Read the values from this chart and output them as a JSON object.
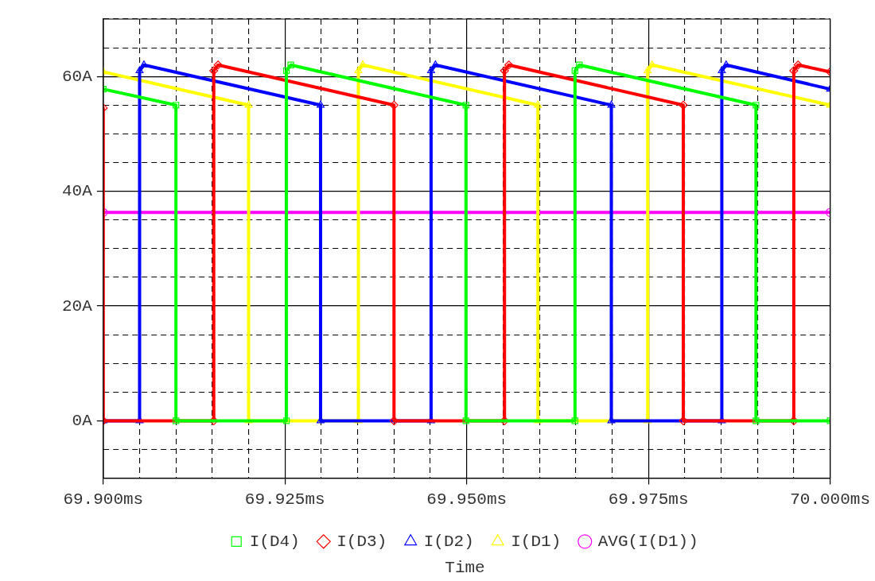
{
  "chart_data": {
    "type": "line",
    "xlabel": "Time",
    "xlim": [
      69.9,
      70.0
    ],
    "ylim": [
      -10,
      70
    ],
    "xticks": [
      {
        "value": 69.9,
        "label": "69.900ms"
      },
      {
        "value": 69.905,
        "label": null
      },
      {
        "value": 69.91,
        "label": null
      },
      {
        "value": 69.915,
        "label": null
      },
      {
        "value": 69.92,
        "label": null
      },
      {
        "value": 69.925,
        "label": "69.925ms"
      },
      {
        "value": 69.93,
        "label": null
      },
      {
        "value": 69.935,
        "label": null
      },
      {
        "value": 69.94,
        "label": null
      },
      {
        "value": 69.945,
        "label": null
      },
      {
        "value": 69.95,
        "label": "69.950ms"
      },
      {
        "value": 69.955,
        "label": null
      },
      {
        "value": 69.96,
        "label": null
      },
      {
        "value": 69.965,
        "label": null
      },
      {
        "value": 69.97,
        "label": null
      },
      {
        "value": 69.975,
        "label": "69.975ms"
      },
      {
        "value": 69.98,
        "label": null
      },
      {
        "value": 69.985,
        "label": null
      },
      {
        "value": 69.99,
        "label": null
      },
      {
        "value": 69.995,
        "label": null
      },
      {
        "value": 70.0,
        "label": "70.000ms"
      }
    ],
    "yticks": [
      {
        "value": -10,
        "label": null
      },
      {
        "value": -5,
        "label": null
      },
      {
        "value": 0,
        "label": "0A"
      },
      {
        "value": 5,
        "label": null
      },
      {
        "value": 10,
        "label": null
      },
      {
        "value": 15,
        "label": null
      },
      {
        "value": 20,
        "label": "20A"
      },
      {
        "value": 25,
        "label": null
      },
      {
        "value": 30,
        "label": null
      },
      {
        "value": 35,
        "label": null
      },
      {
        "value": 40,
        "label": "40A"
      },
      {
        "value": 45,
        "label": null
      },
      {
        "value": 50,
        "label": null
      },
      {
        "value": 55,
        "label": null
      },
      {
        "value": 60,
        "label": "60A"
      },
      {
        "value": 65,
        "label": null
      },
      {
        "value": 70,
        "label": null
      }
    ],
    "grid": true,
    "legend": "bottom",
    "series": [
      {
        "name": "I(D4)",
        "color": "#00ff00",
        "marker": "square",
        "x": [
          69.9,
          69.91,
          69.91,
          69.9252,
          69.9252,
          69.9258,
          69.9499,
          69.9499,
          69.9649,
          69.9649,
          69.9655,
          69.9898,
          69.9898,
          70.0
        ],
        "values": [
          57.8,
          55,
          0,
          0,
          61,
          62,
          55,
          0,
          0,
          61,
          62,
          55,
          0,
          0
        ]
      },
      {
        "name": "I(D3)",
        "color": "#ff0000",
        "marker": "diamond",
        "x": [
          69.9,
          69.9,
          69.9152,
          69.9152,
          69.9158,
          69.94,
          69.94,
          69.9552,
          69.9552,
          69.9558,
          69.9798,
          69.9798,
          69.995,
          69.995,
          69.9956,
          70.0
        ],
        "values": [
          54.5,
          0,
          0,
          61,
          62,
          55,
          0,
          0,
          61,
          62,
          55,
          0,
          0,
          61,
          62,
          60.8
        ]
      },
      {
        "name": "I(D2)",
        "color": "#0000ff",
        "marker": "triangle",
        "x": [
          69.9,
          69.905,
          69.905,
          69.9056,
          69.9299,
          69.9299,
          69.9451,
          69.9451,
          69.9457,
          69.9699,
          69.9699,
          69.9851,
          69.9851,
          69.9857,
          70.0
        ],
        "values": [
          0,
          0,
          61,
          62,
          55,
          0,
          0,
          61,
          62,
          55,
          0,
          0,
          61,
          62,
          57.8
        ]
      },
      {
        "name": "I(D1)",
        "color": "#ffff00",
        "marker": "triangle",
        "x": [
          69.9,
          69.92,
          69.92,
          69.9351,
          69.9351,
          69.9357,
          69.9598,
          69.9598,
          69.9749,
          69.9749,
          69.9755,
          70.0
        ],
        "values": [
          60.8,
          55,
          0,
          0,
          61,
          62,
          55,
          0,
          0,
          61,
          62,
          55
        ]
      },
      {
        "name": "AVG(I(D1))",
        "color": "#ff00ff",
        "marker": "circle",
        "x": [
          69.9,
          70.0
        ],
        "values": [
          36.3,
          36.3
        ]
      }
    ]
  }
}
